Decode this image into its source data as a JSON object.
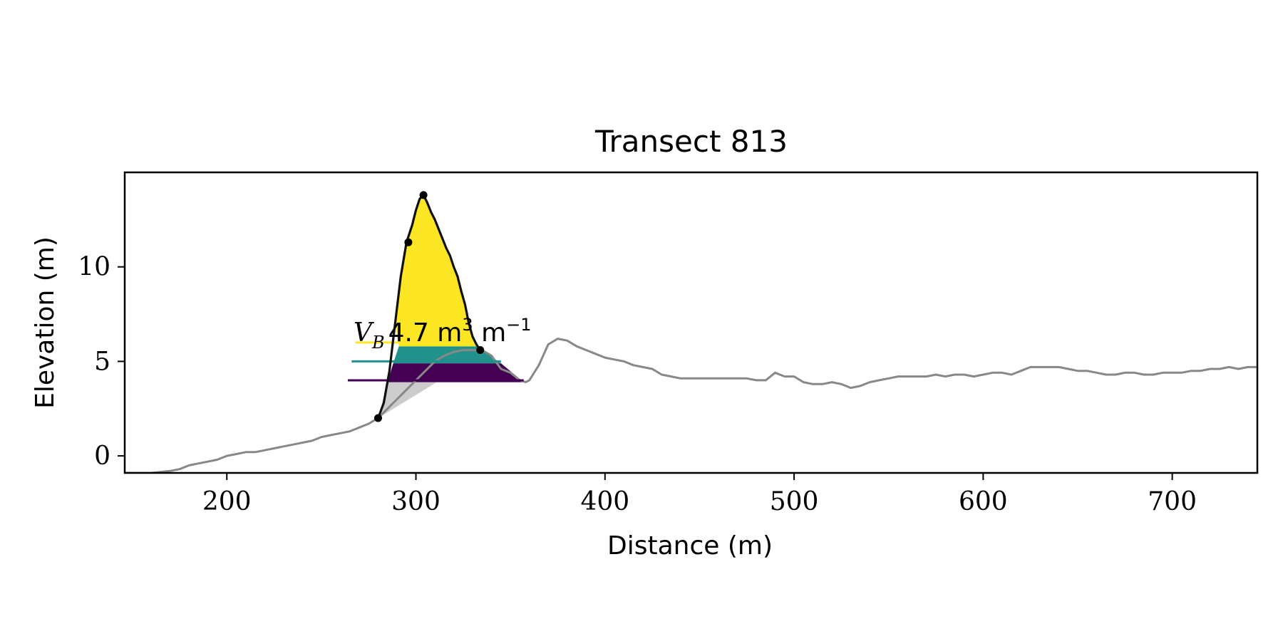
{
  "chart_data": {
    "type": "area",
    "title": "Transect 813",
    "xlabel": "Distance (m)",
    "ylabel": "Elevation (m)",
    "xlim": [
      146,
      745
    ],
    "ylim": [
      -0.9,
      15
    ],
    "xticks": [
      200,
      300,
      400,
      500,
      600,
      700
    ],
    "yticks": [
      0,
      5,
      10
    ],
    "grid": false,
    "legend": "none",
    "annotation": {
      "symbol": "V",
      "subscript": "B",
      "text": "4.7 m",
      "unit_sup": "3",
      "unit2": " m",
      "unit2_sup": "−1",
      "x": 267,
      "y": 6.3
    },
    "ground_profile": {
      "color": "#888888",
      "x": [
        146,
        160,
        170,
        175,
        180,
        185,
        190,
        195,
        200,
        205,
        210,
        215,
        220,
        225,
        230,
        235,
        240,
        245,
        250,
        255,
        260,
        265,
        270,
        275,
        280,
        285,
        290,
        295,
        300,
        305,
        310,
        315,
        320,
        325,
        330,
        335,
        340,
        345,
        350,
        355,
        358,
        360,
        365,
        370,
        375,
        380,
        385,
        390,
        395,
        400,
        405,
        410,
        415,
        420,
        425,
        430,
        435,
        440,
        445,
        450,
        455,
        460,
        465,
        470,
        475,
        480,
        485,
        490,
        495,
        500,
        505,
        510,
        515,
        520,
        525,
        530,
        535,
        540,
        545,
        550,
        555,
        560,
        565,
        570,
        575,
        580,
        585,
        590,
        595,
        600,
        605,
        610,
        615,
        620,
        625,
        630,
        635,
        640,
        645,
        650,
        655,
        660,
        665,
        670,
        675,
        680,
        685,
        690,
        695,
        700,
        705,
        710,
        715,
        720,
        725,
        730,
        735,
        740,
        745
      ],
      "y": [
        -0.9,
        -0.9,
        -0.8,
        -0.7,
        -0.5,
        -0.4,
        -0.3,
        -0.2,
        0.0,
        0.1,
        0.2,
        0.2,
        0.3,
        0.4,
        0.5,
        0.6,
        0.7,
        0.8,
        1.0,
        1.1,
        1.2,
        1.3,
        1.5,
        1.7,
        2.0,
        2.5,
        3.0,
        3.5,
        4.0,
        4.5,
        5.0,
        5.3,
        5.5,
        5.6,
        5.6,
        5.6,
        5.3,
        4.6,
        4.4,
        4.0,
        3.9,
        4.0,
        4.8,
        5.9,
        6.2,
        6.1,
        5.8,
        5.6,
        5.4,
        5.2,
        5.1,
        5.0,
        4.8,
        4.7,
        4.6,
        4.3,
        4.2,
        4.1,
        4.1,
        4.1,
        4.1,
        4.1,
        4.1,
        4.1,
        4.1,
        4.0,
        4.0,
        4.4,
        4.2,
        4.2,
        3.9,
        3.8,
        3.8,
        3.9,
        3.8,
        3.6,
        3.7,
        3.9,
        4.0,
        4.1,
        4.2,
        4.2,
        4.2,
        4.2,
        4.3,
        4.2,
        4.3,
        4.3,
        4.2,
        4.3,
        4.4,
        4.4,
        4.3,
        4.5,
        4.7,
        4.7,
        4.7,
        4.7,
        4.6,
        4.5,
        4.5,
        4.4,
        4.3,
        4.3,
        4.4,
        4.4,
        4.3,
        4.3,
        4.4,
        4.4,
        4.4,
        4.5,
        4.5,
        4.6,
        4.6,
        4.7,
        4.6,
        4.7,
        4.7
      ]
    },
    "dune_profile": {
      "color": "#111111",
      "x": [
        280,
        283,
        286,
        289,
        292,
        295,
        298,
        300,
        302,
        304,
        306,
        308,
        310,
        312,
        314,
        316,
        318,
        320,
        322,
        324,
        326,
        328,
        330,
        332,
        334
      ],
      "y": [
        2.0,
        2.8,
        4.5,
        7.0,
        9.5,
        11.3,
        12.2,
        13.0,
        13.6,
        13.8,
        13.4,
        12.9,
        12.5,
        12.0,
        11.5,
        11.0,
        10.6,
        10.0,
        9.5,
        8.7,
        8.0,
        7.0,
        6.3,
        5.9,
        5.6
      ]
    },
    "key_points": {
      "color": "#000000",
      "x": [
        280,
        296,
        304,
        334
      ],
      "y": [
        2.0,
        11.3,
        13.8,
        5.6
      ]
    },
    "volume_bands": [
      {
        "color": "#fde725",
        "y_bottom": 5.8,
        "x_left_at_bottom": 291,
        "x_right_at_bottom": 332
      },
      {
        "color": "#21918c",
        "y_bottom": 4.9,
        "y_top": 5.8,
        "x_left_bottom": 288,
        "x_right_bottom": 345,
        "x_left_top": 291,
        "x_right_top": 332
      },
      {
        "color": "#440154",
        "y_bottom": 3.9,
        "y_top": 4.9,
        "x_left_bottom": 285,
        "x_right_bottom": 357,
        "x_left_top": 288,
        "x_right_top": 345
      }
    ],
    "reference_lines": [
      {
        "color": "#fde725",
        "y": 6.0,
        "x_start": 268,
        "x_end": 291
      },
      {
        "color": "#21918c",
        "y": 5.0,
        "x_start": 266,
        "x_end": 345
      },
      {
        "color": "#440154",
        "y": 4.0,
        "x_start": 264,
        "x_end": 357
      }
    ],
    "toe_fill": {
      "color": "#cccccc",
      "x": [
        280,
        285,
        311
      ],
      "y": [
        2.0,
        3.9,
        3.9
      ]
    }
  }
}
